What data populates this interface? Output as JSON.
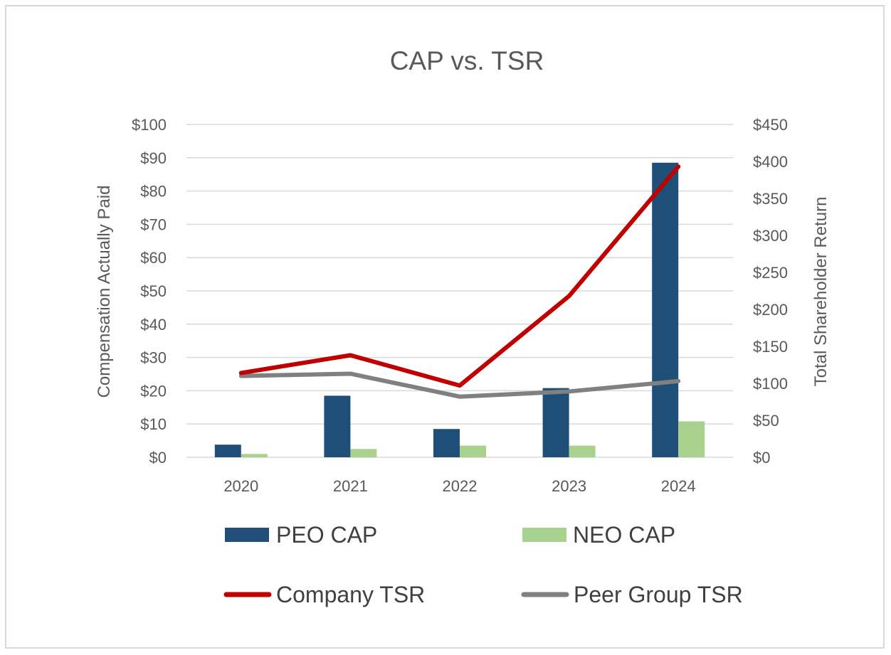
{
  "chart_data": {
    "type": "bar",
    "title": "CAP vs. TSR",
    "categories": [
      "2020",
      "2021",
      "2022",
      "2023",
      "2024"
    ],
    "y_left": {
      "label": "Compensation Actually Paid",
      "range": [
        0,
        100
      ],
      "step": 10,
      "ticks": [
        "$0",
        "$10",
        "$20",
        "$30",
        "$40",
        "$50",
        "$60",
        "$70",
        "$80",
        "$90",
        "$100"
      ]
    },
    "y_right": {
      "label": "Total Shareholder Return",
      "range": [
        0,
        450
      ],
      "step": 50,
      "ticks": [
        "$0",
        "$50",
        "$100",
        "$150",
        "$200",
        "$250",
        "$300",
        "$350",
        "$400",
        "$450"
      ]
    },
    "series": [
      {
        "name": "PEO CAP",
        "kind": "bar",
        "axis": "left",
        "color": "#1f4e79",
        "values": [
          3.8,
          18.5,
          8.5,
          20.8,
          88.5
        ]
      },
      {
        "name": "NEO CAP",
        "kind": "bar",
        "axis": "left",
        "color": "#a9d18e",
        "values": [
          1.0,
          2.5,
          3.5,
          3.5,
          10.8
        ]
      },
      {
        "name": "Company TSR",
        "kind": "line",
        "axis": "right",
        "color": "#c00000",
        "values": [
          114,
          138,
          97,
          218,
          393
        ]
      },
      {
        "name": "Peer Group TSR",
        "kind": "line",
        "axis": "right",
        "color": "#808080",
        "values": [
          110,
          113,
          82,
          89,
          103
        ]
      }
    ],
    "grid": true,
    "legend_position": "bottom"
  }
}
